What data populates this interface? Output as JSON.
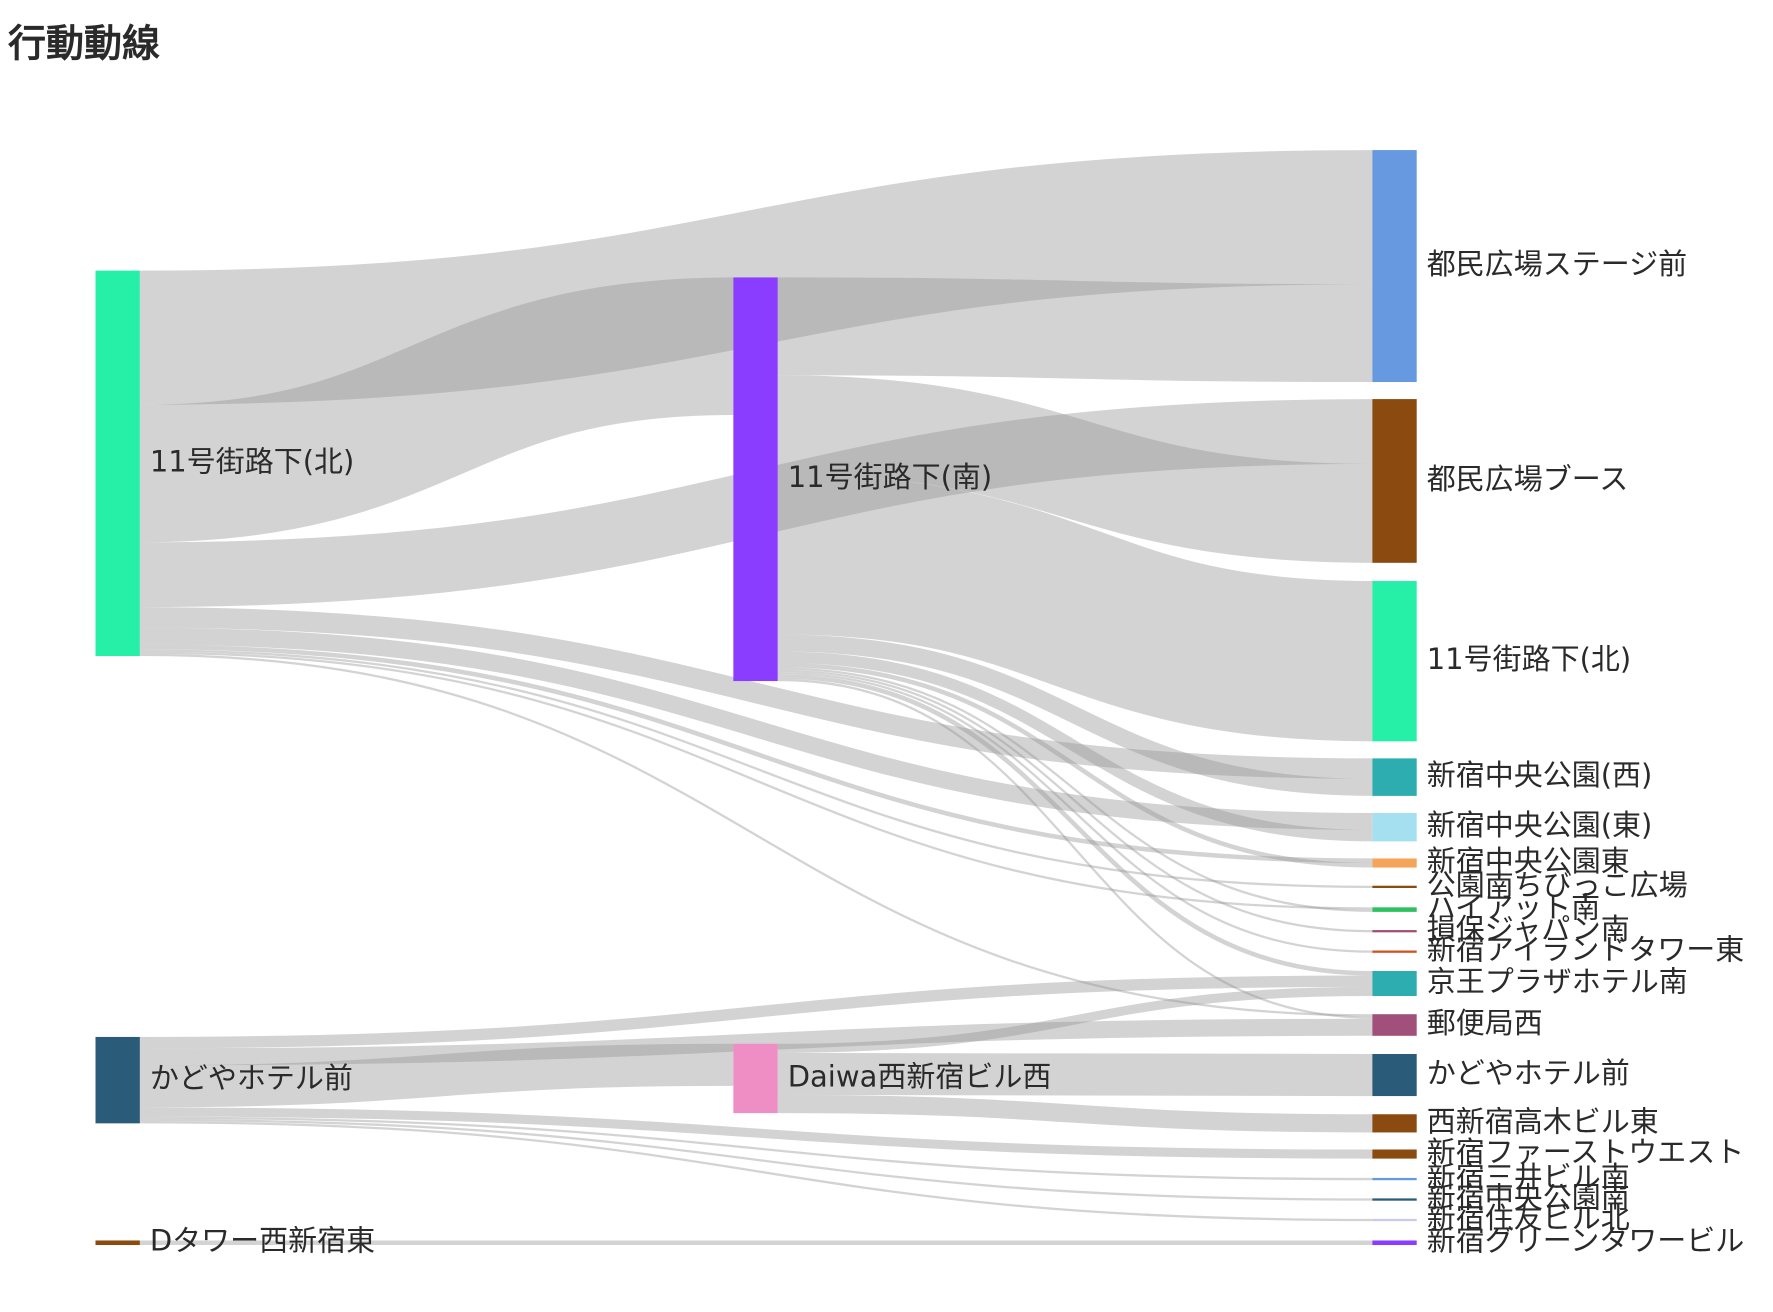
{
  "chart_data": {
    "type": "sankey",
    "title": "行動動線",
    "link_color": "rgba(150,150,150,0.42)",
    "nodes": [
      {
        "label": "11号街路下(北)",
        "color": "#26f0a8"
      },
      {
        "label": "かどやホテル前",
        "color": "#2a5b78"
      },
      {
        "label": "Dタワー西新宿東",
        "color": "#8b4a10"
      },
      {
        "label": "11号街路下(南)",
        "color": "#8a3cff"
      },
      {
        "label": "Daiwa西新宿ビル西",
        "color": "#ef8ec4"
      },
      {
        "label": "都民広場ステージ前",
        "color": "#6699e0"
      },
      {
        "label": "都民広場ブース",
        "color": "#8b4a10"
      },
      {
        "label": "11号街路下(北)",
        "color": "#26f0a8"
      },
      {
        "label": "新宿中央公園(西)",
        "color": "#2eadb0"
      },
      {
        "label": "新宿中央公園(東)",
        "color": "#a4e0f0"
      },
      {
        "label": "新宿中央公園東",
        "color": "#f5a55a"
      },
      {
        "label": "公園南ちびっこ広場",
        "color": "#8b4a10"
      },
      {
        "label": "ハイアット南",
        "color": "#2fc060"
      },
      {
        "label": "損保ジャパン南",
        "color": "#a05070"
      },
      {
        "label": "新宿アイランドタワー東",
        "color": "#d05020"
      },
      {
        "label": "京王プラザホテル南",
        "color": "#2eadb0"
      },
      {
        "label": "郵便局西",
        "color": "#a0507a"
      },
      {
        "label": "かどやホテル前",
        "color": "#2a5b78"
      },
      {
        "label": "西新宿高木ビル東",
        "color": "#8b4a10"
      },
      {
        "label": "新宿ファーストウエスト",
        "color": "#8b4a10"
      },
      {
        "label": "新宿三井ビル南",
        "color": "#6699e0"
      },
      {
        "label": "新宿中央公園南",
        "color": "#2a5b78"
      },
      {
        "label": "新宿住友ビル北",
        "color": "#c8c8f0"
      },
      {
        "label": "新宿グリーンタワービル",
        "color": "#8a3cff"
      }
    ],
    "links": [
      {
        "source": 0,
        "target": 5,
        "value": 118
      },
      {
        "source": 0,
        "target": 3,
        "value": 121
      },
      {
        "source": 0,
        "target": 6,
        "value": 57
      },
      {
        "source": 0,
        "target": 8,
        "value": 18
      },
      {
        "source": 0,
        "target": 9,
        "value": 15
      },
      {
        "source": 0,
        "target": 10,
        "value": 4
      },
      {
        "source": 0,
        "target": 11,
        "value": 2
      },
      {
        "source": 0,
        "target": 12,
        "value": 2
      },
      {
        "source": 0,
        "target": 16,
        "value": 2
      },
      {
        "source": 3,
        "target": 5,
        "value": 86
      },
      {
        "source": 3,
        "target": 6,
        "value": 87
      },
      {
        "source": 3,
        "target": 7,
        "value": 141
      },
      {
        "source": 3,
        "target": 8,
        "value": 15
      },
      {
        "source": 3,
        "target": 9,
        "value": 10
      },
      {
        "source": 3,
        "target": 10,
        "value": 4
      },
      {
        "source": 3,
        "target": 12,
        "value": 2
      },
      {
        "source": 3,
        "target": 13,
        "value": 2
      },
      {
        "source": 3,
        "target": 14,
        "value": 2
      },
      {
        "source": 3,
        "target": 15,
        "value": 4
      },
      {
        "source": 3,
        "target": 16,
        "value": 2
      },
      {
        "source": 1,
        "target": 15,
        "value": 10
      },
      {
        "source": 1,
        "target": 16,
        "value": 15
      },
      {
        "source": 1,
        "target": 4,
        "value": 37
      },
      {
        "source": 1,
        "target": 19,
        "value": 8
      },
      {
        "source": 1,
        "target": 20,
        "value": 2
      },
      {
        "source": 1,
        "target": 21,
        "value": 2
      },
      {
        "source": 1,
        "target": 22,
        "value": 2
      },
      {
        "source": 4,
        "target": 17,
        "value": 37
      },
      {
        "source": 4,
        "target": 18,
        "value": 16
      },
      {
        "source": 4,
        "target": 15,
        "value": 8
      },
      {
        "source": 2,
        "target": 23,
        "value": 4
      }
    ]
  }
}
